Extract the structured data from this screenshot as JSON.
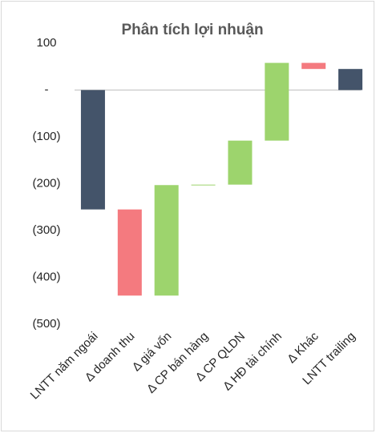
{
  "chart_data": {
    "type": "waterfall",
    "title": "Phân tích lợi nhuận",
    "categories": [
      "LNTT năm ngoái",
      "Δ doanh thu",
      "Δ giá vốn",
      "Δ CP bán hàng",
      "Δ CP QLDN",
      "Δ HĐ tài chính",
      "Δ Khác",
      "LNTT trailing"
    ],
    "values": [
      -255,
      -184,
      236,
      1,
      94,
      166,
      -13,
      45
    ],
    "is_total": [
      true,
      false,
      false,
      false,
      false,
      false,
      false,
      true
    ],
    "colors": {
      "total": "#44546a",
      "increase": "#9dd46d",
      "decrease": "#f47a7f"
    },
    "ylim": [
      -500,
      100
    ],
    "yticks": [
      100,
      {
        "value": 0,
        "label": "-"
      },
      {
        "value": -100,
        "label": "(100)"
      },
      {
        "value": -200,
        "label": "(200)"
      },
      {
        "value": -300,
        "label": "(300)"
      },
      {
        "value": -400,
        "label": "(400)"
      },
      {
        "value": -500,
        "label": "(500)"
      }
    ]
  }
}
